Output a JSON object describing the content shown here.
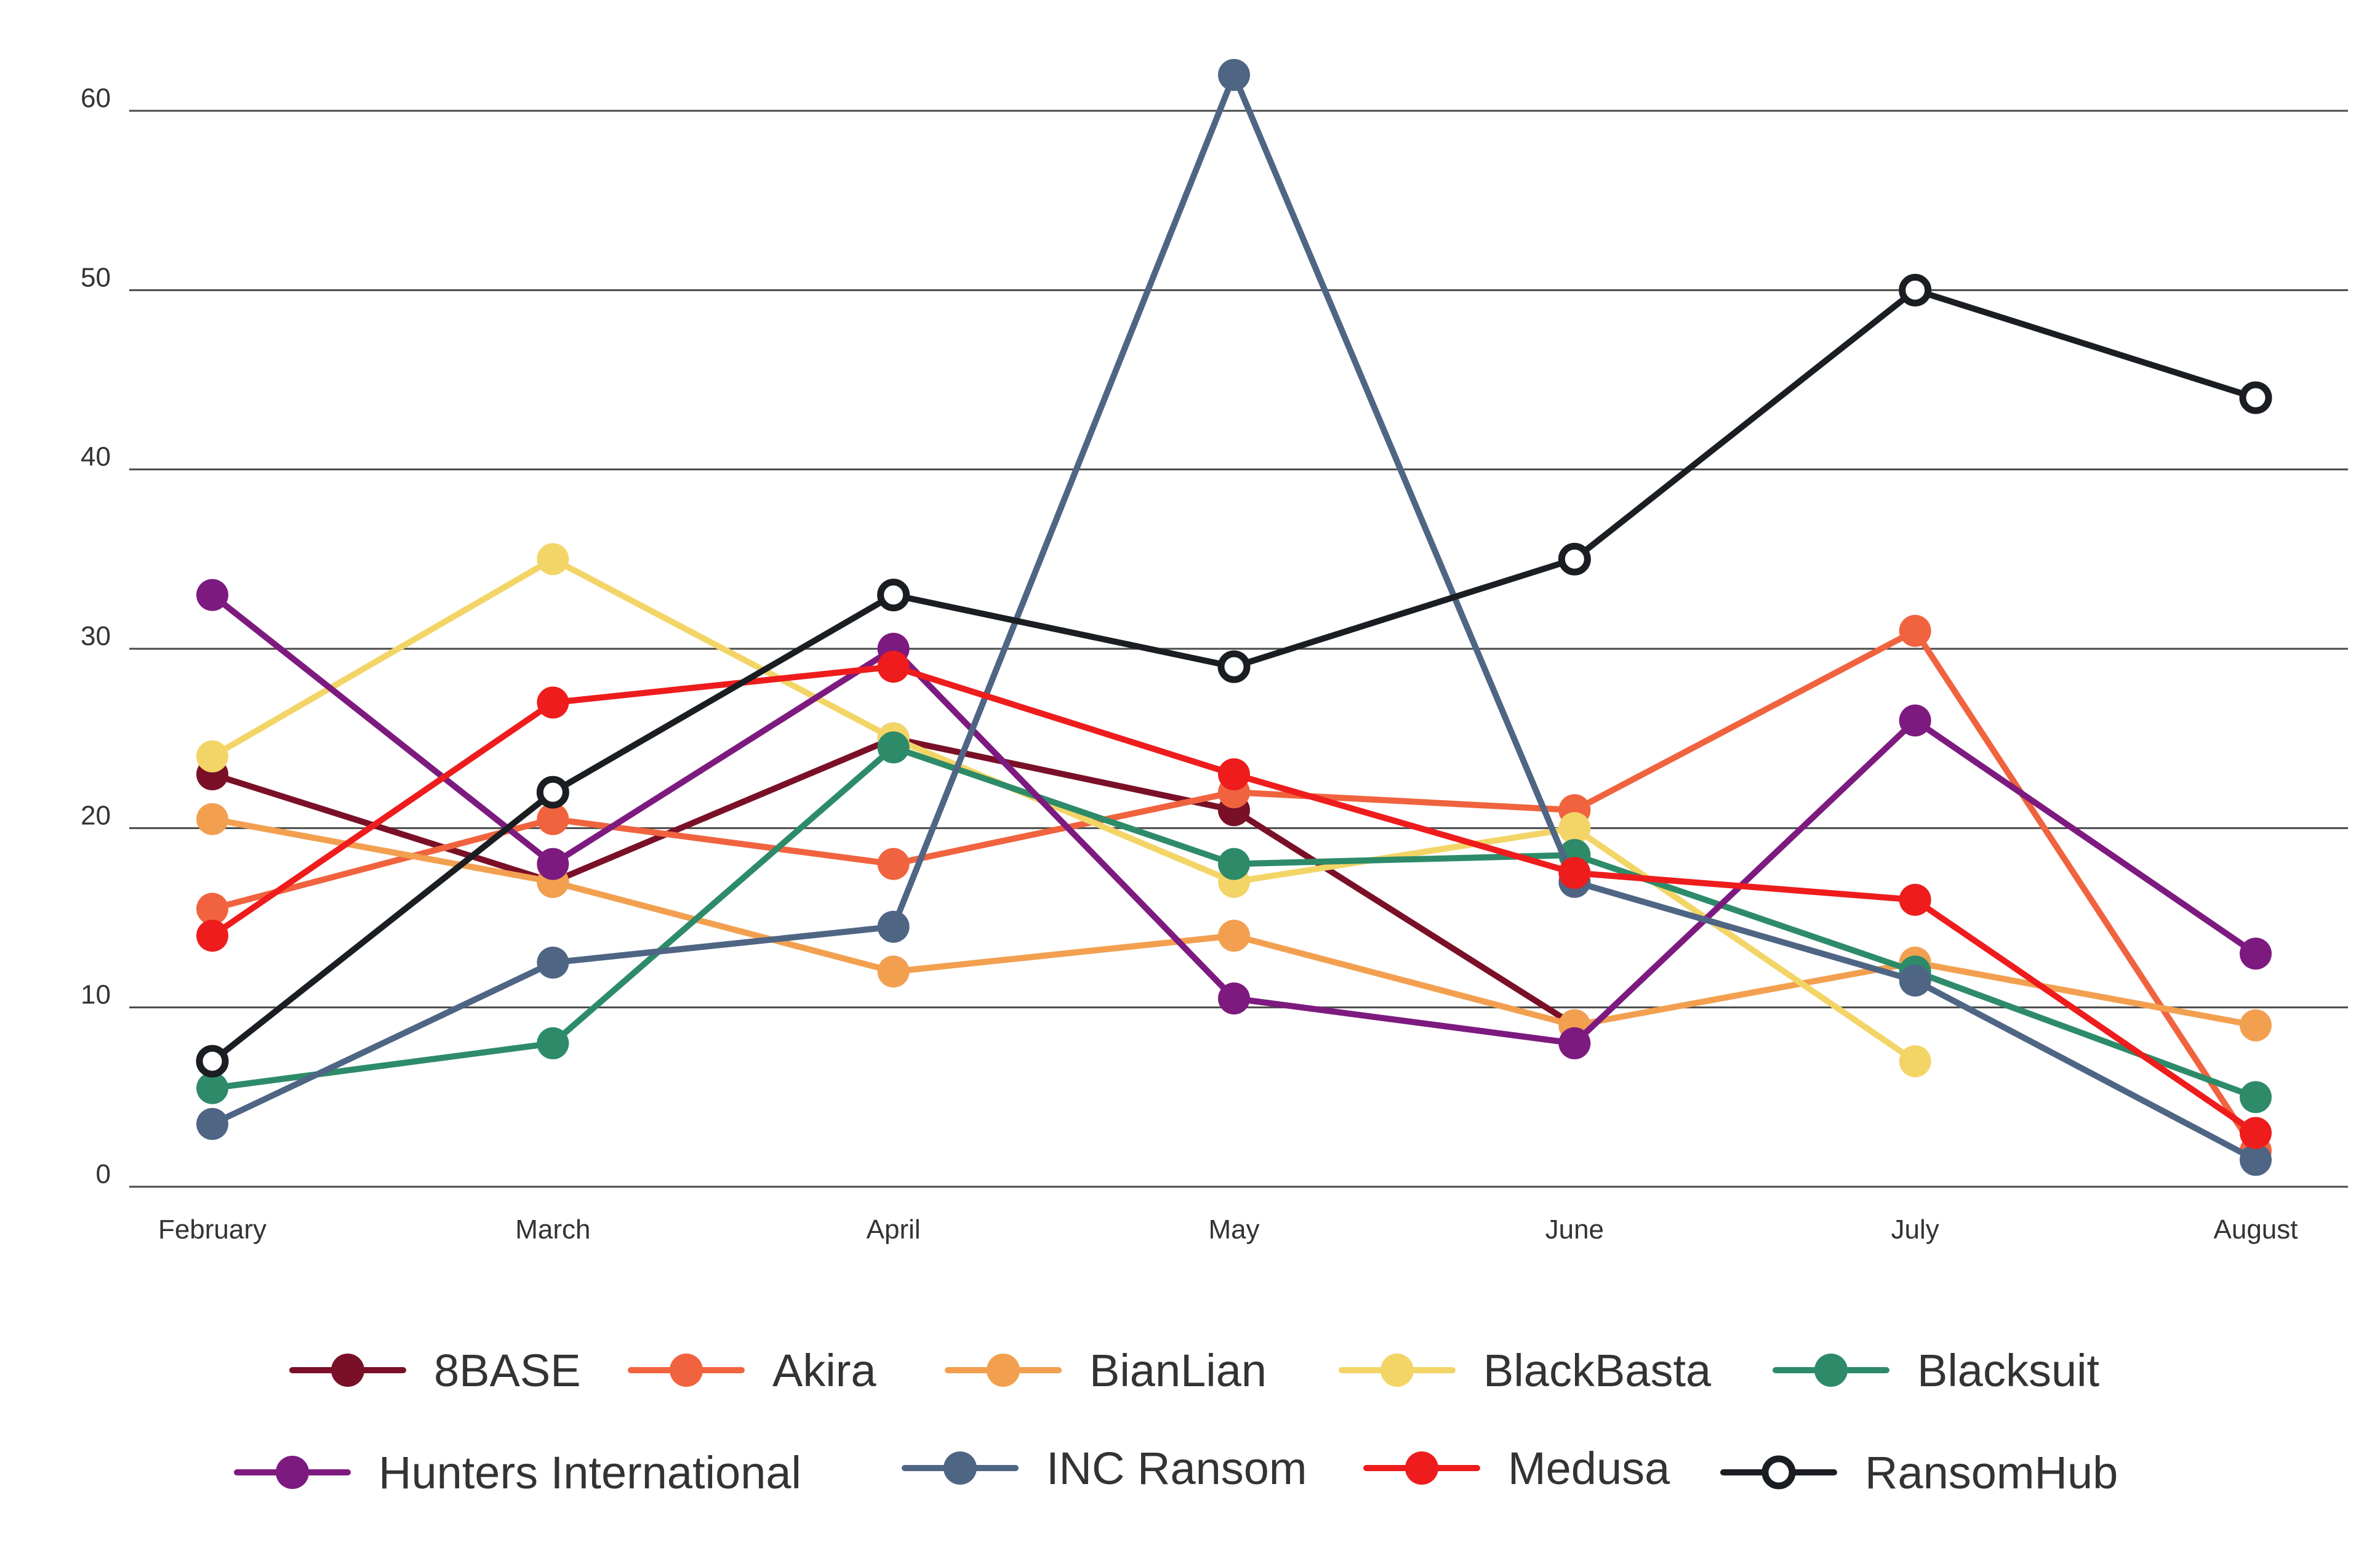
{
  "chart_data": {
    "type": "line",
    "title": "",
    "xlabel": "",
    "ylabel": "",
    "categories": [
      "February",
      "March",
      "April",
      "May",
      "June",
      "July",
      "August"
    ],
    "ylim": [
      0,
      60
    ],
    "y_ticks": [
      0,
      10,
      20,
      30,
      40,
      50,
      60
    ],
    "grid": true,
    "legend_position": "bottom",
    "series": [
      {
        "name": "8BASE",
        "color": "#7a1027",
        "marker": "filled",
        "values": [
          23,
          17,
          25,
          21,
          9,
          null,
          null
        ]
      },
      {
        "name": "Akira",
        "color": "#f0633e",
        "marker": "filled",
        "values": [
          15.5,
          20.5,
          18,
          22,
          21,
          31,
          2
        ]
      },
      {
        "name": "BianLian",
        "color": "#f2a050",
        "marker": "filled",
        "values": [
          20.5,
          17,
          12,
          14,
          9,
          12.5,
          9
        ]
      },
      {
        "name": "BlackBasta",
        "color": "#f3d567",
        "marker": "filled",
        "values": [
          24,
          35,
          25,
          17,
          20,
          7,
          null
        ]
      },
      {
        "name": "Blacksuit",
        "color": "#2e8b69",
        "marker": "filled",
        "values": [
          5.5,
          8,
          24.5,
          18,
          18.5,
          12,
          5
        ]
      },
      {
        "name": "Hunters International",
        "color": "#7d1a7f",
        "marker": "filled",
        "values": [
          33,
          18,
          30,
          10.5,
          8,
          26,
          13
        ]
      },
      {
        "name": "INC Ransom",
        "color": "#4f6584",
        "marker": "filled",
        "values": [
          3.5,
          12.5,
          14.5,
          62,
          17,
          11.5,
          1.5
        ]
      },
      {
        "name": "Medusa",
        "color": "#ee1c1c",
        "marker": "filled",
        "values": [
          14,
          27,
          29,
          23,
          17.5,
          16,
          3
        ]
      },
      {
        "name": "RansomHub",
        "color": "#1a1d21",
        "marker": "hollow",
        "values": [
          7,
          22,
          33,
          29,
          35,
          50,
          44
        ]
      }
    ]
  }
}
